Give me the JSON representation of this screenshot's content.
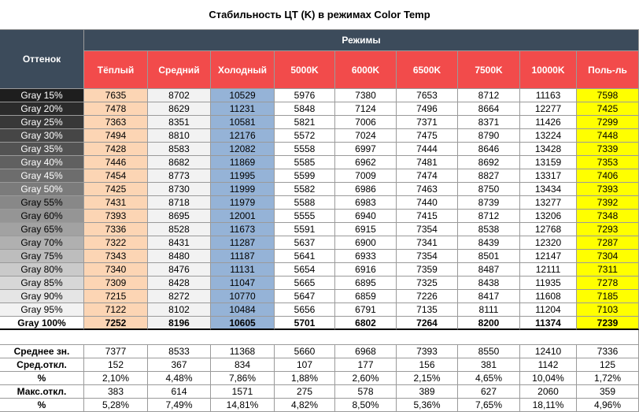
{
  "title": "Стабильность ЦТ (K) в режимах Color Temp",
  "header": {
    "shade": "Оттенок",
    "modes": "Режимы",
    "columns": [
      "Тёплый",
      "Средний",
      "Холодный",
      "5000K",
      "6000K",
      "6500K",
      "7500K",
      "10000K",
      "Поль-ль"
    ]
  },
  "rows": [
    {
      "label": "Gray 15%",
      "values": [
        7635,
        8702,
        10529,
        5976,
        7380,
        7653,
        8712,
        11163,
        7598
      ]
    },
    {
      "label": "Gray 20%",
      "values": [
        7478,
        8629,
        11231,
        5848,
        7124,
        7496,
        8664,
        12277,
        7425
      ]
    },
    {
      "label": "Gray 25%",
      "values": [
        7363,
        8351,
        10581,
        5821,
        7006,
        7371,
        8371,
        11426,
        7299
      ]
    },
    {
      "label": "Gray 30%",
      "values": [
        7494,
        8810,
        12176,
        5572,
        7024,
        7475,
        8790,
        13224,
        7448
      ]
    },
    {
      "label": "Gray 35%",
      "values": [
        7428,
        8583,
        12082,
        5558,
        6997,
        7444,
        8646,
        13428,
        7339
      ]
    },
    {
      "label": "Gray 40%",
      "values": [
        7446,
        8682,
        11869,
        5585,
        6962,
        7481,
        8692,
        13159,
        7353
      ]
    },
    {
      "label": "Gray 45%",
      "values": [
        7454,
        8773,
        11995,
        5599,
        7009,
        7474,
        8827,
        13317,
        7406
      ]
    },
    {
      "label": "Gray 50%",
      "values": [
        7425,
        8730,
        11999,
        5582,
        6986,
        7463,
        8750,
        13434,
        7393
      ]
    },
    {
      "label": "Gray 55%",
      "values": [
        7431,
        8718,
        11979,
        5588,
        6983,
        7440,
        8739,
        13277,
        7392
      ]
    },
    {
      "label": "Gray 60%",
      "values": [
        7393,
        8695,
        12001,
        5555,
        6940,
        7415,
        8712,
        13206,
        7348
      ]
    },
    {
      "label": "Gray 65%",
      "values": [
        7336,
        8528,
        11673,
        5591,
        6915,
        7354,
        8538,
        12768,
        7293
      ]
    },
    {
      "label": "Gray 70%",
      "values": [
        7322,
        8431,
        11287,
        5637,
        6900,
        7341,
        8439,
        12320,
        7287
      ]
    },
    {
      "label": "Gray 75%",
      "values": [
        7343,
        8480,
        11187,
        5641,
        6933,
        7354,
        8501,
        12147,
        7304
      ]
    },
    {
      "label": "Gray 80%",
      "values": [
        7340,
        8476,
        11131,
        5654,
        6916,
        7359,
        8487,
        12111,
        7311
      ]
    },
    {
      "label": "Gray 85%",
      "values": [
        7309,
        8428,
        11047,
        5665,
        6895,
        7325,
        8438,
        11935,
        7278
      ]
    },
    {
      "label": "Gray 90%",
      "values": [
        7215,
        8272,
        10770,
        5647,
        6859,
        7226,
        8417,
        11608,
        7185
      ]
    },
    {
      "label": "Gray 95%",
      "values": [
        7122,
        8102,
        10484,
        5656,
        6791,
        7135,
        8111,
        11204,
        7103
      ]
    },
    {
      "label": "Gray 100%",
      "values": [
        7252,
        8196,
        10605,
        5701,
        6802,
        7264,
        8200,
        11374,
        7239
      ]
    }
  ],
  "summary": [
    {
      "label": "Среднее зн.",
      "values": [
        7377,
        8533,
        11368,
        5660,
        6968,
        7393,
        8550,
        12410,
        7336
      ]
    },
    {
      "label": "Сред.откл.",
      "values": [
        152,
        367,
        834,
        107,
        177,
        156,
        381,
        1142,
        125
      ]
    },
    {
      "label": "%",
      "values": [
        "2,10%",
        "4,48%",
        "7,86%",
        "1,88%",
        "2,60%",
        "2,15%",
        "4,65%",
        "10,04%",
        "1,72%"
      ]
    },
    {
      "label": "Макс.откл.",
      "values": [
        383,
        614,
        1571,
        275,
        578,
        389,
        627,
        2060,
        359
      ]
    },
    {
      "label": "%",
      "values": [
        "5,28%",
        "7,49%",
        "14,81%",
        "4,82%",
        "8,50%",
        "5,36%",
        "7,65%",
        "18,11%",
        "4,96%"
      ]
    }
  ]
}
